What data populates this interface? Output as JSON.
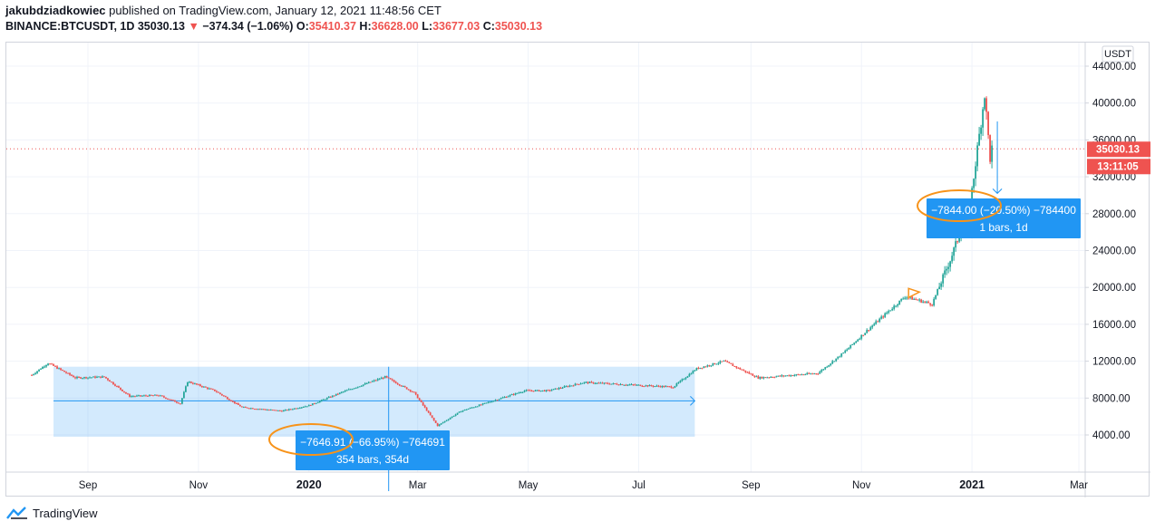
{
  "header": {
    "author": "jakubdziadkowiec",
    "published": "published on TradingView.com, January 12, 2021 11:48:56 CET",
    "symbol": "BINANCE:BTCUSDT, 1D",
    "price": "35030.13",
    "change": "−374.34 (−1.06%)",
    "o_label": "O:",
    "o_value": "35410.37",
    "h_label": "H:",
    "h_value": "36628.00",
    "l_label": "L:",
    "l_value": "33677.03",
    "c_label": "C:",
    "c_value": "35030.13"
  },
  "footer": {
    "brand": "TradingView"
  },
  "colors": {
    "up": "#26a69a",
    "down": "#ef5350",
    "accent": "#2196f3",
    "annotation": "#f7931a"
  },
  "chart_data": {
    "type": "candlestick",
    "currency_badge": "USDT",
    "x_ticks": [
      "Sep",
      "Nov",
      "2020",
      "Mar",
      "May",
      "Jul",
      "Sep",
      "Nov",
      "2021",
      "Mar"
    ],
    "y_ticks": [
      "4000.00",
      "8000.00",
      "12000.00",
      "16000.00",
      "20000.00",
      "24000.00",
      "28000.00",
      "32000.00",
      "36000.00",
      "40000.00",
      "44000.00"
    ],
    "ylim": [
      0,
      46000
    ],
    "last_price_label": "35030.13",
    "countdown_label": "13:11:05",
    "price_path": [
      [
        "2019-08-01",
        10500
      ],
      [
        "2019-08-10",
        11800
      ],
      [
        "2019-08-25",
        10200
      ],
      [
        "2019-09-10",
        10300
      ],
      [
        "2019-09-24",
        8200
      ],
      [
        "2019-10-10",
        8300
      ],
      [
        "2019-10-22",
        7400
      ],
      [
        "2019-10-26",
        9800
      ],
      [
        "2019-11-10",
        8800
      ],
      [
        "2019-11-25",
        7000
      ],
      [
        "2019-12-17",
        6600
      ],
      [
        "2020-01-01",
        7200
      ],
      [
        "2020-01-20",
        8700
      ],
      [
        "2020-02-12",
        10300
      ],
      [
        "2020-02-28",
        8600
      ],
      [
        "2020-03-12",
        5000
      ],
      [
        "2020-03-25",
        6600
      ],
      [
        "2020-04-29",
        8800
      ],
      [
        "2020-05-12",
        8800
      ],
      [
        "2020-06-01",
        9700
      ],
      [
        "2020-07-20",
        9200
      ],
      [
        "2020-08-02",
        11200
      ],
      [
        "2020-08-17",
        12000
      ],
      [
        "2020-09-05",
        10200
      ],
      [
        "2020-10-08",
        10700
      ],
      [
        "2020-10-22",
        12900
      ],
      [
        "2020-11-05",
        15500
      ],
      [
        "2020-11-25",
        19000
      ],
      [
        "2020-12-10",
        18200
      ],
      [
        "2020-12-20",
        23000
      ],
      [
        "2020-12-31",
        29000
      ],
      [
        "2021-01-08",
        41000
      ],
      [
        "2021-01-11",
        34000
      ],
      [
        "2021-01-12",
        35030
      ]
    ],
    "measure_boxes": [
      {
        "from": "2019-08-13",
        "to": "2020-08-01",
        "low": 3800,
        "high": 11400,
        "label": "−7646.91 (−66.95%) −764691",
        "sublabel": "354 bars, 354d"
      },
      {
        "from": "2021-01-11",
        "to": "2021-01-12",
        "low": 30200,
        "high": 38000,
        "label": "−7844.00 (−20.50%) −784400",
        "sublabel": "1 bars, 1d"
      }
    ]
  }
}
